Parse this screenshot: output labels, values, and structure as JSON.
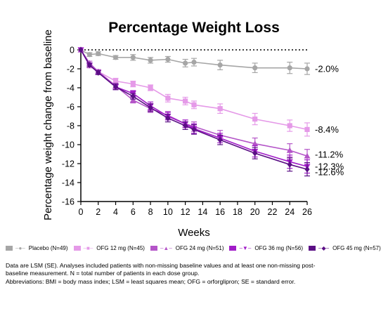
{
  "chart_data": {
    "type": "line",
    "title": "Percentage Weight Loss",
    "xlabel": "Weeks",
    "ylabel": "Percentage weight change from baseline",
    "xlim": [
      0,
      26
    ],
    "ylim": [
      -16,
      0
    ],
    "x_ticks": [
      0,
      2,
      4,
      6,
      8,
      10,
      12,
      14,
      16,
      18,
      20,
      22,
      24,
      26
    ],
    "y_ticks": [
      0,
      -2,
      -4,
      -6,
      -8,
      -10,
      -12,
      -14,
      -16
    ],
    "reference_line": 0,
    "legend_position": "bottom",
    "series": [
      {
        "name": "Placebo (N=49)",
        "color": "#a6a6a6",
        "marker": "circle",
        "end_label": "-2.0%",
        "x": [
          0,
          1,
          2,
          4,
          6,
          8,
          10,
          12,
          13,
          16,
          20,
          24,
          26
        ],
        "y": [
          0,
          -0.5,
          -0.4,
          -0.8,
          -0.8,
          -1.1,
          -1.0,
          -1.4,
          -1.3,
          -1.6,
          -1.9,
          -1.9,
          -2.0
        ],
        "se": [
          0,
          0.2,
          0.2,
          0.2,
          0.3,
          0.3,
          0.3,
          0.4,
          0.4,
          0.5,
          0.5,
          0.6,
          0.6
        ]
      },
      {
        "name": "OFG 12 mg (N=45)",
        "color": "#e59ae8",
        "marker": "square",
        "end_label": "-8.4%",
        "x": [
          0,
          1,
          2,
          4,
          6,
          8,
          10,
          12,
          13,
          16,
          20,
          24,
          26
        ],
        "y": [
          0,
          -1.7,
          -2.3,
          -3.3,
          -3.6,
          -4.0,
          -5.1,
          -5.4,
          -5.8,
          -6.2,
          -7.3,
          -8.0,
          -8.4
        ],
        "se": [
          0,
          0.2,
          0.2,
          0.3,
          0.3,
          0.3,
          0.4,
          0.4,
          0.4,
          0.5,
          0.6,
          0.6,
          0.7
        ]
      },
      {
        "name": "OFG 24 mg (N=51)",
        "color": "#b455c8",
        "marker": "triangle",
        "end_label": "-11.2%",
        "x": [
          0,
          1,
          2,
          4,
          6,
          8,
          10,
          12,
          13,
          16,
          20,
          24,
          26
        ],
        "y": [
          0,
          -1.4,
          -2.3,
          -3.8,
          -5.3,
          -6.2,
          -6.9,
          -7.8,
          -8.1,
          -9.0,
          -9.9,
          -10.6,
          -11.2
        ],
        "se": [
          0,
          0.2,
          0.2,
          0.3,
          0.3,
          0.4,
          0.4,
          0.4,
          0.5,
          0.5,
          0.6,
          0.7,
          0.7
        ]
      },
      {
        "name": "OFG 36 mg (N=56)",
        "color": "#a11cc8",
        "marker": "inverted-triangle",
        "end_label": "-12.3%",
        "x": [
          0,
          1,
          2,
          4,
          6,
          8,
          10,
          12,
          13,
          16,
          20,
          24,
          26
        ],
        "y": [
          0,
          -1.6,
          -2.4,
          -3.9,
          -4.6,
          -5.9,
          -7.0,
          -7.8,
          -8.3,
          -9.3,
          -10.7,
          -11.8,
          -12.3
        ],
        "se": [
          0,
          0.2,
          0.2,
          0.3,
          0.3,
          0.4,
          0.4,
          0.4,
          0.5,
          0.5,
          0.6,
          0.7,
          0.7
        ]
      },
      {
        "name": "OFG 45 mg (N=57)",
        "color": "#5b0f85",
        "marker": "diamond",
        "end_label": "-12.6%",
        "x": [
          0,
          1,
          2,
          4,
          6,
          8,
          10,
          12,
          13,
          16,
          20,
          24,
          26
        ],
        "y": [
          0,
          -1.6,
          -2.4,
          -3.9,
          -4.9,
          -6.1,
          -7.2,
          -8.0,
          -8.4,
          -9.5,
          -10.9,
          -12.1,
          -12.6
        ],
        "se": [
          0,
          0.2,
          0.2,
          0.3,
          0.3,
          0.4,
          0.4,
          0.4,
          0.5,
          0.5,
          0.6,
          0.7,
          0.7
        ]
      }
    ]
  },
  "footnotes": [
    "Data are LSM (SE). Analyses included patients with non-missing baseline values and at least one non-missing post-",
    "baseline measurement.  N = total number of patients in each dose group.",
    "Abbreviations:  BMI = body mass index; LSM = least squares mean; OFG = orforglipron; SE = standard error."
  ]
}
